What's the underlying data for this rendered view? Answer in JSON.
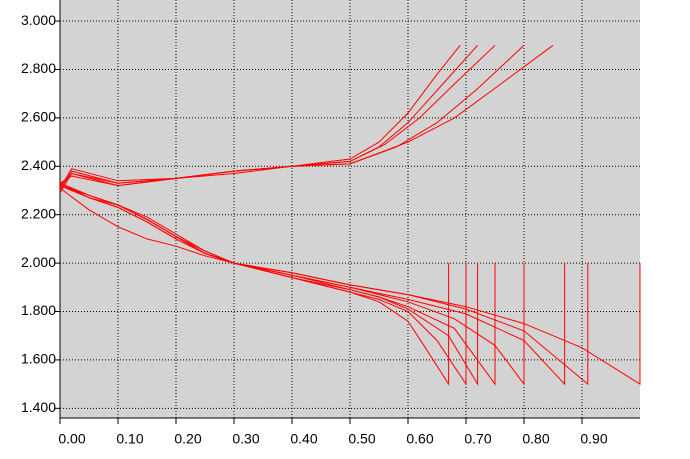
{
  "chart_data": {
    "type": "line",
    "grid": true,
    "color": "#ff0000",
    "xlim": [
      0,
      1.0
    ],
    "ylim": [
      1.36,
      3.087
    ],
    "xticks": [
      {
        "value": 0,
        "label": "0.00"
      },
      {
        "value": 0.1,
        "label": "0.10"
      },
      {
        "value": 0.2,
        "label": "0.20"
      },
      {
        "value": 0.3,
        "label": "0.30"
      },
      {
        "value": 0.4,
        "label": "0.40"
      },
      {
        "value": 0.5,
        "label": "0.50"
      },
      {
        "value": 0.6,
        "label": "0.60"
      },
      {
        "value": 0.7,
        "label": "0.70"
      },
      {
        "value": 0.8,
        "label": "0.80"
      },
      {
        "value": 0.9,
        "label": "0.90"
      }
    ],
    "yticks": [
      {
        "value": 1.4,
        "label": "1.400"
      },
      {
        "value": 1.6,
        "label": "1.600"
      },
      {
        "value": 1.8,
        "label": "1.800"
      },
      {
        "value": 2,
        "label": "2.000"
      },
      {
        "value": 2.2,
        "label": "2.200"
      },
      {
        "value": 2.4,
        "label": "2.400"
      },
      {
        "value": 2.6,
        "label": "2.600"
      },
      {
        "value": 2.8,
        "label": "2.800"
      },
      {
        "value": 3,
        "label": "3.000"
      }
    ],
    "series": [
      {
        "x": [
          0,
          0.02,
          0.1,
          0.2,
          0.3,
          0.4,
          0.5,
          0.55,
          0.6,
          0.65,
          0.69
        ],
        "values": [
          2.3,
          2.38,
          2.33,
          2.35,
          2.38,
          2.4,
          2.43,
          2.5,
          2.62,
          2.78,
          2.9
        ]
      },
      {
        "x": [
          0,
          0.02,
          0.1,
          0.2,
          0.3,
          0.4,
          0.5,
          0.55,
          0.6,
          0.66,
          0.72
        ],
        "values": [
          2.32,
          2.37,
          2.32,
          2.35,
          2.38,
          2.4,
          2.42,
          2.48,
          2.58,
          2.74,
          2.9
        ]
      },
      {
        "x": [
          0,
          0.02,
          0.1,
          0.2,
          0.3,
          0.4,
          0.5,
          0.56,
          0.62,
          0.68,
          0.75
        ],
        "values": [
          2.31,
          2.39,
          2.34,
          2.35,
          2.38,
          2.4,
          2.42,
          2.49,
          2.6,
          2.74,
          2.9
        ]
      },
      {
        "x": [
          0,
          0.02,
          0.1,
          0.2,
          0.3,
          0.4,
          0.5,
          0.58,
          0.65,
          0.72,
          0.8
        ],
        "values": [
          2.29,
          2.37,
          2.33,
          2.35,
          2.37,
          2.4,
          2.41,
          2.48,
          2.58,
          2.72,
          2.9
        ]
      },
      {
        "x": [
          0,
          0.02,
          0.1,
          0.2,
          0.3,
          0.4,
          0.5,
          0.6,
          0.68,
          0.76,
          0.85
        ],
        "values": [
          2.33,
          2.36,
          2.32,
          2.35,
          2.38,
          2.4,
          2.41,
          2.5,
          2.6,
          2.74,
          2.9
        ]
      },
      {
        "x": [
          0,
          0.05,
          0.1,
          0.15,
          0.2,
          0.25,
          0.3,
          0.4,
          0.5,
          0.55,
          0.6,
          0.63,
          0.67,
          0.67
        ],
        "values": [
          2.33,
          2.28,
          2.24,
          2.18,
          2.11,
          2.04,
          2.0,
          1.94,
          1.88,
          1.84,
          1.76,
          1.65,
          1.5,
          2.0
        ]
      },
      {
        "x": [
          0,
          0.05,
          0.1,
          0.15,
          0.2,
          0.25,
          0.3,
          0.4,
          0.5,
          0.55,
          0.6,
          0.65,
          0.7,
          0.7
        ],
        "values": [
          2.32,
          2.27,
          2.23,
          2.17,
          2.1,
          2.04,
          2.0,
          1.94,
          1.88,
          1.85,
          1.8,
          1.68,
          1.5,
          2.0
        ]
      },
      {
        "x": [
          0,
          0.05,
          0.1,
          0.15,
          0.2,
          0.25,
          0.3,
          0.4,
          0.5,
          0.55,
          0.6,
          0.67,
          0.72,
          0.72
        ],
        "values": [
          2.31,
          2.22,
          2.15,
          2.1,
          2.07,
          2.03,
          2.0,
          1.95,
          1.89,
          1.86,
          1.81,
          1.7,
          1.5,
          2.0
        ]
      },
      {
        "x": [
          0,
          0.05,
          0.1,
          0.15,
          0.2,
          0.25,
          0.3,
          0.4,
          0.5,
          0.55,
          0.6,
          0.68,
          0.75,
          0.75
        ],
        "values": [
          2.33,
          2.28,
          2.24,
          2.18,
          2.11,
          2.04,
          2.0,
          1.94,
          1.89,
          1.86,
          1.82,
          1.73,
          1.5,
          2.0
        ]
      },
      {
        "x": [
          0,
          0.05,
          0.1,
          0.15,
          0.2,
          0.25,
          0.3,
          0.4,
          0.5,
          0.6,
          0.68,
          0.75,
          0.8,
          0.8
        ],
        "values": [
          2.32,
          2.28,
          2.24,
          2.19,
          2.12,
          2.05,
          2.0,
          1.95,
          1.9,
          1.84,
          1.77,
          1.66,
          1.5,
          2.0
        ]
      },
      {
        "x": [
          0,
          0.05,
          0.1,
          0.15,
          0.2,
          0.25,
          0.3,
          0.4,
          0.5,
          0.6,
          0.7,
          0.8,
          0.87,
          0.87
        ],
        "values": [
          2.33,
          2.27,
          2.24,
          2.18,
          2.11,
          2.05,
          2.0,
          1.95,
          1.9,
          1.85,
          1.79,
          1.68,
          1.5,
          2.0
        ]
      },
      {
        "x": [
          0,
          0.05,
          0.1,
          0.15,
          0.2,
          0.25,
          0.3,
          0.4,
          0.5,
          0.6,
          0.7,
          0.8,
          0.91,
          0.91
        ],
        "values": [
          2.33,
          2.28,
          2.24,
          2.18,
          2.11,
          2.04,
          2.0,
          1.96,
          1.91,
          1.87,
          1.81,
          1.72,
          1.5,
          2.0
        ]
      },
      {
        "x": [
          0,
          0.05,
          0.1,
          0.15,
          0.2,
          0.25,
          0.3,
          0.4,
          0.5,
          0.6,
          0.7,
          0.8,
          0.9,
          1.0,
          1.0
        ],
        "values": [
          2.32,
          2.27,
          2.23,
          2.17,
          2.1,
          2.04,
          2.0,
          1.96,
          1.91,
          1.87,
          1.82,
          1.75,
          1.65,
          1.5,
          2.0
        ]
      }
    ]
  }
}
